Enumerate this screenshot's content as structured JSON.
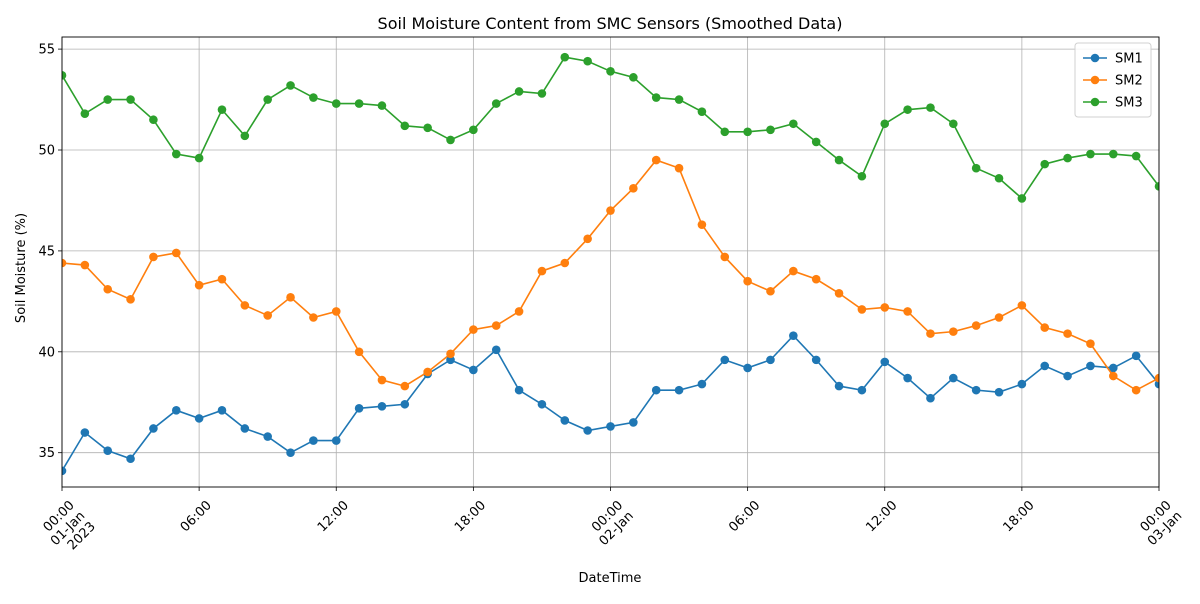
{
  "chart_data": {
    "type": "line",
    "title": "Soil Moisture Content from SMC Sensors (Smoothed Data)",
    "xlabel": "DateTime",
    "ylabel": "Soil Moisture (%)",
    "x": [
      "2023-01-01 00:00",
      "2023-01-01 01:00",
      "2023-01-01 02:00",
      "2023-01-01 03:00",
      "2023-01-01 04:00",
      "2023-01-01 05:00",
      "2023-01-01 06:00",
      "2023-01-01 07:00",
      "2023-01-01 08:00",
      "2023-01-01 09:00",
      "2023-01-01 10:00",
      "2023-01-01 11:00",
      "2023-01-01 12:00",
      "2023-01-01 13:00",
      "2023-01-01 14:00",
      "2023-01-01 15:00",
      "2023-01-01 16:00",
      "2023-01-01 17:00",
      "2023-01-01 18:00",
      "2023-01-01 19:00",
      "2023-01-01 20:00",
      "2023-01-01 21:00",
      "2023-01-01 22:00",
      "2023-01-01 23:00",
      "2023-01-02 00:00",
      "2023-01-02 01:00",
      "2023-01-02 02:00",
      "2023-01-02 03:00",
      "2023-01-02 04:00",
      "2023-01-02 05:00",
      "2023-01-02 06:00",
      "2023-01-02 07:00",
      "2023-01-02 08:00",
      "2023-01-02 09:00",
      "2023-01-02 10:00",
      "2023-01-02 11:00",
      "2023-01-02 12:00",
      "2023-01-02 13:00",
      "2023-01-02 14:00",
      "2023-01-02 15:00",
      "2023-01-02 16:00",
      "2023-01-02 17:00",
      "2023-01-02 18:00",
      "2023-01-02 19:00",
      "2023-01-02 20:00",
      "2023-01-02 21:00",
      "2023-01-02 22:00",
      "2023-01-02 23:00",
      "2023-01-03 00:00"
    ],
    "xlim": [
      "2023-01-01 00:00",
      "2023-01-03 00:00"
    ],
    "ylim": [
      33.3,
      55.6
    ],
    "x_ticks": [
      {
        "at": "2023-01-01 00:00",
        "label": [
          "00:00",
          "01-Jan",
          "2023"
        ]
      },
      {
        "at": "2023-01-01 06:00",
        "label": [
          "06:00"
        ]
      },
      {
        "at": "2023-01-01 12:00",
        "label": [
          "12:00"
        ]
      },
      {
        "at": "2023-01-01 18:00",
        "label": [
          "18:00"
        ]
      },
      {
        "at": "2023-01-02 00:00",
        "label": [
          "00:00",
          "02-Jan"
        ]
      },
      {
        "at": "2023-01-02 06:00",
        "label": [
          "06:00"
        ]
      },
      {
        "at": "2023-01-02 12:00",
        "label": [
          "12:00"
        ]
      },
      {
        "at": "2023-01-02 18:00",
        "label": [
          "18:00"
        ]
      },
      {
        "at": "2023-01-03 00:00",
        "label": [
          "00:00",
          "03-Jan"
        ]
      }
    ],
    "y_ticks": [
      35,
      40,
      45,
      50,
      55
    ],
    "grid": true,
    "legend": "top-right",
    "series": [
      {
        "name": "SM1",
        "color": "#1f77b4",
        "values": [
          34.1,
          36.0,
          35.1,
          34.7,
          36.2,
          37.1,
          36.7,
          37.1,
          36.2,
          35.8,
          35.0,
          35.6,
          35.6,
          37.2,
          37.3,
          37.4,
          38.9,
          39.6,
          39.1,
          40.1,
          38.1,
          37.4,
          36.6,
          36.1,
          36.3,
          36.5,
          38.1,
          38.1,
          38.4,
          39.6,
          39.2,
          39.6,
          40.8,
          39.6,
          38.3,
          38.1,
          39.5,
          38.7,
          37.7,
          38.7,
          38.1,
          38.0,
          38.4,
          39.3,
          38.8,
          39.3,
          39.2,
          39.8,
          38.4
        ]
      },
      {
        "name": "SM2",
        "color": "#ff7f0e",
        "values": [
          44.4,
          44.3,
          43.1,
          42.6,
          44.7,
          44.9,
          43.3,
          43.6,
          42.3,
          41.8,
          42.7,
          41.7,
          42.0,
          40.0,
          38.6,
          38.3,
          39.0,
          39.9,
          41.1,
          41.3,
          42.0,
          44.0,
          44.4,
          45.6,
          47.0,
          48.1,
          49.5,
          49.1,
          46.3,
          44.7,
          43.5,
          43.0,
          44.0,
          43.6,
          42.9,
          42.1,
          42.2,
          42.0,
          40.9,
          41.0,
          41.3,
          41.7,
          42.3,
          41.2,
          40.9,
          40.4,
          38.8,
          38.1,
          38.7
        ]
      },
      {
        "name": "SM3",
        "color": "#2ca02c",
        "values": [
          53.7,
          51.8,
          52.5,
          52.5,
          51.5,
          49.8,
          49.6,
          52.0,
          50.7,
          52.5,
          53.2,
          52.6,
          52.3,
          52.3,
          52.2,
          51.2,
          51.1,
          50.5,
          51.0,
          52.3,
          52.9,
          52.8,
          54.6,
          54.4,
          53.9,
          53.6,
          52.6,
          52.5,
          51.9,
          50.9,
          50.9,
          51.0,
          51.3,
          50.4,
          49.5,
          48.7,
          51.3,
          52.0,
          52.1,
          51.3,
          49.1,
          48.6,
          47.6,
          49.3,
          49.6,
          49.8,
          49.8,
          49.7,
          48.2
        ]
      }
    ]
  }
}
